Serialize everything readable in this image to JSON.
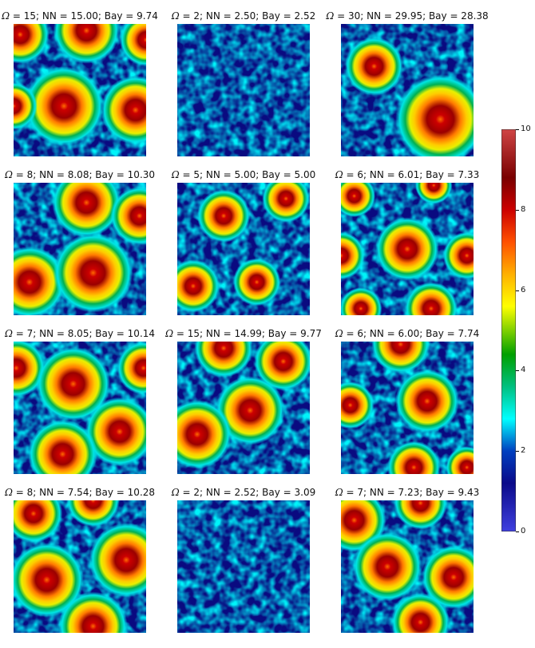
{
  "chart_data": {
    "type": "heatmap",
    "title": "",
    "colormap": "gist_ncar-like (blue-cyan-green-yellow-orange-red)",
    "colors": [
      "#3b3bd6",
      "#0a0a7a",
      "#00ffff",
      "#00c060",
      "#ffff00",
      "#ff9900",
      "#dd0000",
      "#8b0000",
      "#d04545"
    ],
    "colorbar": {
      "vmin": 0,
      "vmax": 10,
      "ticks": [
        "0",
        "2",
        "4",
        "6",
        "8",
        "10"
      ]
    },
    "panels": [
      {
        "omega": "15",
        "nn": "15.00",
        "bay": "9.74",
        "label": "; NN = 15.00; Bay = 9.74",
        "blobs": [
          [
            0.05,
            0.08,
            0.22
          ],
          [
            0.55,
            0.05,
            0.25
          ],
          [
            1.0,
            0.12,
            0.2
          ],
          [
            0.38,
            0.62,
            0.3
          ],
          [
            0.92,
            0.65,
            0.26
          ],
          [
            0.0,
            0.62,
            0.18
          ]
        ]
      },
      {
        "omega": "2",
        "nn": "2.50",
        "bay": "2.52",
        "label": "; NN = 2.50; Bay = 2.52",
        "blobs": []
      },
      {
        "omega": "30",
        "nn": "29.95",
        "bay": "28.38",
        "label": "; NN = 29.95; Bay = 28.38",
        "blobs": [
          [
            0.25,
            0.32,
            0.22
          ],
          [
            0.75,
            0.72,
            0.34
          ]
        ]
      },
      {
        "omega": "8",
        "nn": "8.08",
        "bay": "10.30",
        "label": "; NN = 8.08; Bay = 10.30",
        "blobs": [
          [
            0.55,
            0.15,
            0.26
          ],
          [
            0.95,
            0.25,
            0.22
          ],
          [
            0.12,
            0.75,
            0.27
          ],
          [
            0.6,
            0.68,
            0.3
          ]
        ]
      },
      {
        "omega": "5",
        "nn": "5.00",
        "bay": "5.00",
        "label": "; NN = 5.00; Bay = 5.00",
        "blobs": [
          [
            0.35,
            0.25,
            0.2
          ],
          [
            0.82,
            0.12,
            0.18
          ],
          [
            0.12,
            0.78,
            0.2
          ],
          [
            0.6,
            0.75,
            0.18
          ]
        ]
      },
      {
        "omega": "6",
        "nn": "6.01",
        "bay": "7.33",
        "label": "; NN = 6.01; Bay = 7.33",
        "blobs": [
          [
            0.1,
            0.1,
            0.16
          ],
          [
            0.7,
            0.02,
            0.14
          ],
          [
            0.5,
            0.5,
            0.24
          ],
          [
            0.0,
            0.55,
            0.18
          ],
          [
            0.95,
            0.55,
            0.18
          ],
          [
            0.68,
            0.95,
            0.2
          ],
          [
            0.15,
            0.95,
            0.16
          ]
        ]
      },
      {
        "omega": "7",
        "nn": "8.05",
        "bay": "10.14",
        "label": "; NN = 8.05; Bay = 10.14",
        "blobs": [
          [
            0.02,
            0.2,
            0.22
          ],
          [
            0.45,
            0.32,
            0.28
          ],
          [
            0.98,
            0.2,
            0.2
          ],
          [
            0.8,
            0.68,
            0.26
          ],
          [
            0.37,
            0.85,
            0.26
          ]
        ]
      },
      {
        "omega": "15",
        "nn": "14.99",
        "bay": "9.77",
        "label": "; NN = 14.99; Bay = 9.77",
        "blobs": [
          [
            0.35,
            0.05,
            0.22
          ],
          [
            0.8,
            0.15,
            0.22
          ],
          [
            0.55,
            0.52,
            0.26
          ],
          [
            0.15,
            0.7,
            0.26
          ]
        ]
      },
      {
        "omega": "6",
        "nn": "6.00",
        "bay": "7.74",
        "label": "; NN = 6.00; Bay = 7.74",
        "blobs": [
          [
            0.45,
            0.02,
            0.22
          ],
          [
            0.65,
            0.45,
            0.24
          ],
          [
            0.07,
            0.48,
            0.18
          ],
          [
            0.55,
            0.95,
            0.2
          ],
          [
            0.95,
            0.95,
            0.16
          ]
        ]
      },
      {
        "omega": "8",
        "nn": "7.54",
        "bay": "10.28",
        "label": "; NN = 7.54; Bay = 10.28",
        "blobs": [
          [
            0.15,
            0.1,
            0.22
          ],
          [
            0.6,
            0.0,
            0.2
          ],
          [
            0.85,
            0.45,
            0.28
          ],
          [
            0.25,
            0.6,
            0.28
          ],
          [
            0.6,
            0.95,
            0.26
          ]
        ]
      },
      {
        "omega": "2",
        "nn": "2.52",
        "bay": "3.09",
        "label": "; NN = 2.52; Bay = 3.09",
        "blobs": []
      },
      {
        "omega": "7",
        "nn": "7.23",
        "bay": "9.43",
        "label": "; NN = 7.23; Bay = 9.43",
        "blobs": [
          [
            0.1,
            0.15,
            0.24
          ],
          [
            0.6,
            0.02,
            0.2
          ],
          [
            0.35,
            0.5,
            0.26
          ],
          [
            0.85,
            0.58,
            0.24
          ],
          [
            0.6,
            0.92,
            0.22
          ]
        ]
      }
    ]
  }
}
